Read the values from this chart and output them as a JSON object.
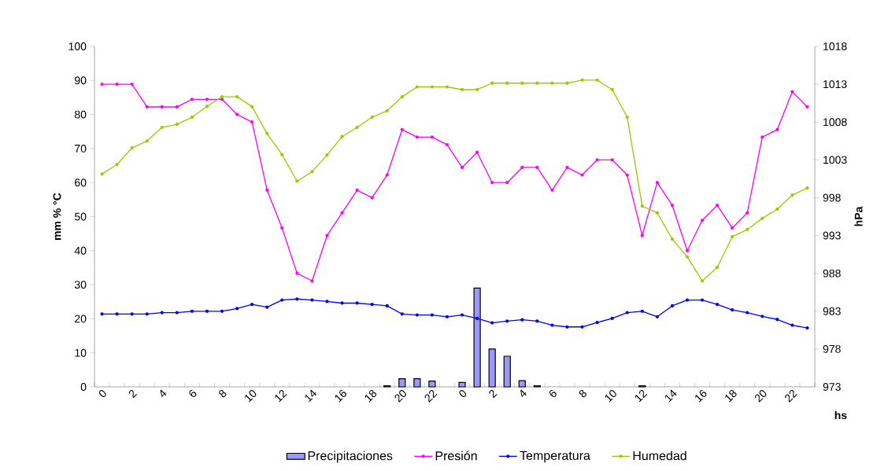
{
  "chart_data": {
    "type": "line",
    "xlabel": "hs",
    "ylabel": "mm     %     °C",
    "y2label": "hPa",
    "categories": [
      "0",
      null,
      "2",
      null,
      "4",
      null,
      "6",
      null,
      "8",
      null,
      "10",
      null,
      "12",
      null,
      "14",
      null,
      "16",
      null,
      "18",
      null,
      "20",
      null,
      "22",
      null,
      "0",
      null,
      "2",
      null,
      "4",
      null,
      "6",
      null,
      "8",
      null,
      "10",
      null,
      "12",
      null,
      "14",
      null,
      "16",
      null,
      "18",
      null,
      "20",
      null,
      "22",
      null
    ],
    "ylim": [
      0,
      100
    ],
    "yticks": [
      0,
      10,
      20,
      30,
      40,
      50,
      60,
      70,
      80,
      90,
      100
    ],
    "y2lim": [
      973,
      1018
    ],
    "y2ticks": [
      973,
      978,
      983,
      988,
      993,
      998,
      1003,
      1008,
      1013,
      1018
    ],
    "legend": "bottom",
    "marker": "circle",
    "series": [
      {
        "name": "Precipitaciones",
        "type": "bar",
        "color": "#9999ff",
        "values": [
          null,
          null,
          null,
          null,
          null,
          null,
          null,
          null,
          null,
          null,
          null,
          null,
          null,
          null,
          null,
          null,
          null,
          null,
          null,
          0.3,
          2.4,
          2.4,
          1.7,
          null,
          1.3,
          29,
          11.1,
          9,
          1.8,
          0.3,
          null,
          null,
          null,
          null,
          null,
          null,
          0.3,
          null,
          null,
          null,
          null,
          null,
          null,
          null,
          null,
          null,
          null,
          null
        ]
      },
      {
        "name": "Presión",
        "axis": "y2",
        "color": "#ff00ff",
        "values": [
          1013,
          1013,
          1013,
          1010,
          1010,
          1010,
          1011,
          1011,
          1011,
          1009,
          1008,
          999,
          994,
          988,
          987,
          993,
          996,
          999,
          998,
          1001,
          1007,
          1006,
          1006,
          1005,
          1002,
          1004,
          1000,
          1000,
          1002,
          1002,
          999,
          1002,
          1001,
          1003,
          1003,
          1001,
          993,
          1000,
          997,
          991,
          995,
          997,
          994,
          996,
          1006,
          1007,
          1012,
          1010
        ]
      },
      {
        "name": "Temperatura",
        "color": "#0000ff",
        "values": [
          21.4,
          21.4,
          21.4,
          21.4,
          21.8,
          21.8,
          22.2,
          22.2,
          22.2,
          23.0,
          24.2,
          23.4,
          25.5,
          25.8,
          25.5,
          25.1,
          24.6,
          24.6,
          24.2,
          23.8,
          21.4,
          21.1,
          21.1,
          20.6,
          21.1,
          20.1,
          18.8,
          19.3,
          19.7,
          19.3,
          18.1,
          17.6,
          17.6,
          18.9,
          20.1,
          21.8,
          22.2,
          20.6,
          23.8,
          25.5,
          25.5,
          24.2,
          22.6,
          21.8,
          20.7,
          19.8,
          18.1,
          17.3
        ]
      },
      {
        "name": "Humedad",
        "color": "#99cc00",
        "values": [
          62.5,
          65.3,
          70.2,
          72.2,
          76.2,
          77.1,
          79.2,
          82.4,
          85.2,
          85.2,
          82.3,
          74.4,
          68.2,
          60.4,
          63.2,
          68.1,
          73.5,
          76.2,
          79.2,
          81.1,
          85.2,
          88.1,
          88.1,
          88.1,
          87.3,
          87.3,
          89.2,
          89.2,
          89.2,
          89.2,
          89.2,
          89.2,
          90.1,
          90.1,
          87.3,
          79.2,
          53.1,
          51.1,
          43.4,
          38.2,
          31.1,
          35.1,
          44.1,
          46.2,
          49.5,
          52.2,
          56.3,
          58.4
        ]
      }
    ]
  }
}
